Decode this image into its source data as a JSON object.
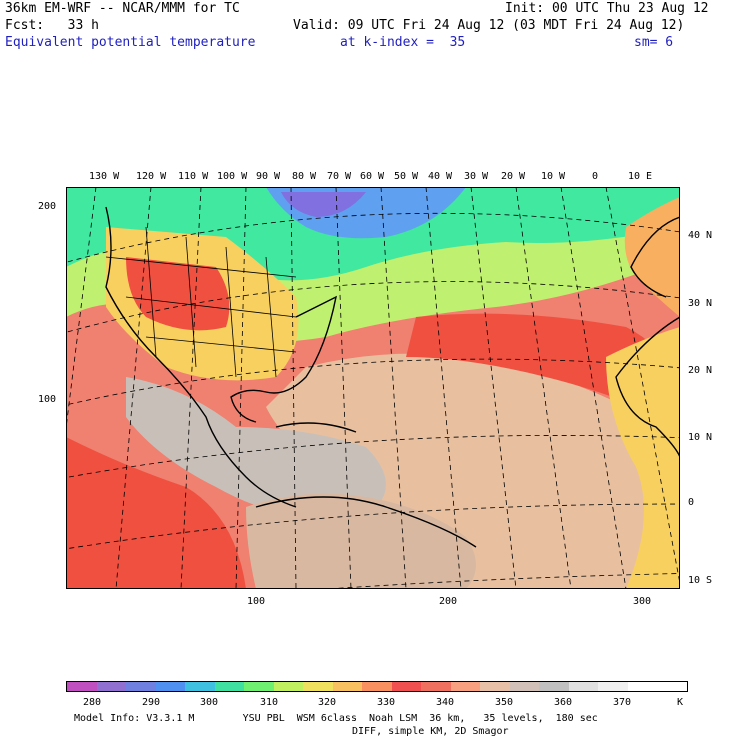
{
  "header": {
    "model": "36km EM-WRF -- NCAR/MMM for TC",
    "init": "Init: 00 UTC Thu 23 Aug 12",
    "fcst": "Fcst:   33 h",
    "valid": "Valid: 09 UTC Fri 24 Aug 12 (03 MDT Fri 24 Aug 12)",
    "field": "Equivalent potential temperature",
    "level": "at k-index =  35",
    "smooth": "sm= 6"
  },
  "map": {
    "top_lon_labels": [
      "130 W",
      "120 W",
      "110 W",
      "100 W",
      "90 W",
      "80 W",
      "70 W",
      "60 W",
      "50 W",
      "40 W",
      "30 W",
      "20 W",
      "10 W",
      "0",
      "10 E"
    ],
    "right_lat_labels": [
      "40 N",
      "30 N",
      "20 N",
      "10 N",
      "0",
      "10 S"
    ],
    "left_grid_labels": [
      "200",
      "100"
    ],
    "bottom_grid_labels": [
      "100",
      "200",
      "300"
    ],
    "colors": {
      "cold": "#60a0f0",
      "cool": "#40e8a0",
      "mild": "#c0f070",
      "warm": "#f8d060",
      "hot": "#f07050",
      "very_hot": "#f05040",
      "tan": "#e8c0a0",
      "grey": "#c8c0b8",
      "land": "#d8b8a0"
    }
  },
  "colorbar": {
    "ticks": [
      "280",
      "290",
      "300",
      "310",
      "320",
      "330",
      "340",
      "350",
      "360",
      "370"
    ],
    "unit": "K",
    "colors": [
      "#c050c0",
      "#9070d0",
      "#7080e0",
      "#5090f0",
      "#40c0e0",
      "#40e0a0",
      "#70f070",
      "#c0f060",
      "#f0e060",
      "#f8c060",
      "#f89060",
      "#f05050",
      "#f07060",
      "#f8a080",
      "#e8c0a8",
      "#d0c0b8",
      "#c0c0c0",
      "#e0e0e0",
      "#f0f0f0",
      "#ffffff",
      "#ffffff"
    ]
  },
  "footer": {
    "info_line1": "Model Info: V3.3.1 M        YSU PBL  WSM 6class  Noah LSM  36 km,   35 levels,  180 sec",
    "info_line2": "DIFF, simple KM, 2D Smagor"
  }
}
